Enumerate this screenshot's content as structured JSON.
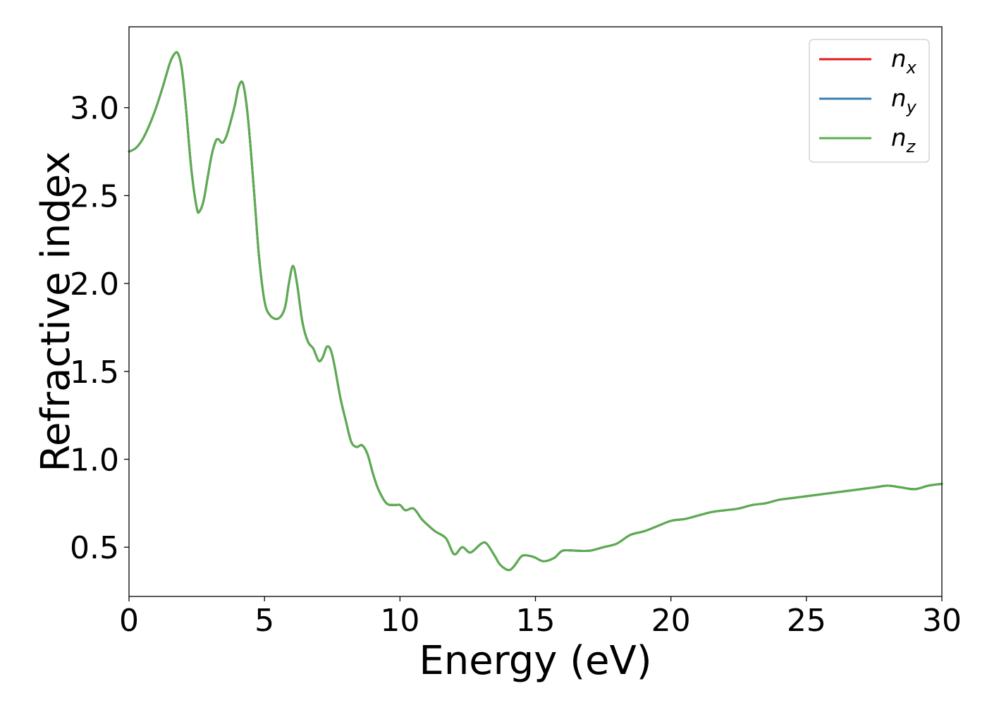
{
  "chart_data": {
    "type": "line",
    "title": "",
    "xlabel": "Energy (eV)",
    "ylabel": "Refractive index",
    "xlim": [
      0,
      30
    ],
    "ylim": [
      0.22,
      3.46
    ],
    "xticks": [
      0,
      5,
      10,
      15,
      20,
      25,
      30
    ],
    "yticks": [
      0.5,
      1.0,
      1.5,
      2.0,
      2.5,
      3.0
    ],
    "ytick_labels": [
      "0.5",
      "1.0",
      "1.5",
      "2.0",
      "2.5",
      "3.0"
    ],
    "grid": false,
    "legend_position": "top-right",
    "x": [
      0,
      0.25,
      0.5,
      0.75,
      1.0,
      1.25,
      1.5,
      1.65,
      1.8,
      1.95,
      2.1,
      2.3,
      2.5,
      2.6,
      2.75,
      2.9,
      3.05,
      3.2,
      3.3,
      3.45,
      3.6,
      3.75,
      3.9,
      4.05,
      4.2,
      4.35,
      4.5,
      4.65,
      4.8,
      5.0,
      5.2,
      5.5,
      5.75,
      5.9,
      6.05,
      6.2,
      6.4,
      6.6,
      6.8,
      7.0,
      7.15,
      7.3,
      7.45,
      7.6,
      7.8,
      8.0,
      8.2,
      8.4,
      8.6,
      8.8,
      9.0,
      9.2,
      9.5,
      9.8,
      10.0,
      10.2,
      10.5,
      10.8,
      11.0,
      11.3,
      11.7,
      12.0,
      12.3,
      12.6,
      13.0,
      13.2,
      13.5,
      13.7,
      14.0,
      14.2,
      14.5,
      14.8,
      15.0,
      15.3,
      15.7,
      16.0,
      16.5,
      17.0,
      17.5,
      18.0,
      18.5,
      19.0,
      19.5,
      20.0,
      20.5,
      21.0,
      21.5,
      22.0,
      22.5,
      23.0,
      23.5,
      24.0,
      24.5,
      25.0,
      25.5,
      26.0,
      26.5,
      27.0,
      27.5,
      28.0,
      28.5,
      29.0,
      29.5,
      30.0
    ],
    "series": [
      {
        "name": "n_x",
        "legend_base": "n",
        "legend_sub": "x",
        "color": "#e31a1c",
        "values": [
          2.75,
          2.77,
          2.82,
          2.9,
          3.0,
          3.12,
          3.25,
          3.3,
          3.31,
          3.22,
          3.0,
          2.65,
          2.43,
          2.41,
          2.47,
          2.6,
          2.73,
          2.81,
          2.82,
          2.8,
          2.84,
          2.92,
          3.01,
          3.12,
          3.14,
          3.0,
          2.75,
          2.45,
          2.15,
          1.9,
          1.82,
          1.8,
          1.86,
          2.0,
          2.1,
          2.0,
          1.78,
          1.67,
          1.63,
          1.56,
          1.58,
          1.64,
          1.62,
          1.52,
          1.35,
          1.22,
          1.1,
          1.07,
          1.08,
          1.03,
          0.92,
          0.83,
          0.75,
          0.74,
          0.74,
          0.71,
          0.72,
          0.66,
          0.63,
          0.59,
          0.55,
          0.46,
          0.5,
          0.47,
          0.52,
          0.52,
          0.45,
          0.4,
          0.37,
          0.39,
          0.45,
          0.45,
          0.44,
          0.42,
          0.44,
          0.48,
          0.48,
          0.48,
          0.5,
          0.52,
          0.57,
          0.59,
          0.62,
          0.65,
          0.66,
          0.68,
          0.7,
          0.71,
          0.72,
          0.74,
          0.75,
          0.77,
          0.78,
          0.79,
          0.8,
          0.81,
          0.82,
          0.83,
          0.84,
          0.85,
          0.84,
          0.83,
          0.85,
          0.86
        ]
      },
      {
        "name": "n_y",
        "legend_base": "n",
        "legend_sub": "y",
        "color": "#3a7fb5",
        "values": [
          2.75,
          2.77,
          2.82,
          2.9,
          3.0,
          3.12,
          3.25,
          3.3,
          3.31,
          3.22,
          3.0,
          2.65,
          2.43,
          2.41,
          2.47,
          2.6,
          2.73,
          2.81,
          2.82,
          2.8,
          2.84,
          2.92,
          3.01,
          3.12,
          3.14,
          3.0,
          2.75,
          2.45,
          2.15,
          1.9,
          1.82,
          1.8,
          1.86,
          2.0,
          2.1,
          2.0,
          1.78,
          1.67,
          1.63,
          1.56,
          1.58,
          1.64,
          1.62,
          1.52,
          1.35,
          1.22,
          1.1,
          1.07,
          1.08,
          1.03,
          0.92,
          0.83,
          0.75,
          0.74,
          0.74,
          0.71,
          0.72,
          0.66,
          0.63,
          0.59,
          0.55,
          0.46,
          0.5,
          0.47,
          0.52,
          0.52,
          0.45,
          0.4,
          0.37,
          0.39,
          0.45,
          0.45,
          0.44,
          0.42,
          0.44,
          0.48,
          0.48,
          0.48,
          0.5,
          0.52,
          0.57,
          0.59,
          0.62,
          0.65,
          0.66,
          0.68,
          0.7,
          0.71,
          0.72,
          0.74,
          0.75,
          0.77,
          0.78,
          0.79,
          0.8,
          0.81,
          0.82,
          0.83,
          0.84,
          0.85,
          0.84,
          0.83,
          0.85,
          0.86
        ]
      },
      {
        "name": "n_z",
        "legend_base": "n",
        "legend_sub": "z",
        "color": "#5aad4e",
        "values": [
          2.75,
          2.77,
          2.82,
          2.9,
          3.0,
          3.12,
          3.25,
          3.3,
          3.31,
          3.22,
          3.0,
          2.65,
          2.43,
          2.41,
          2.47,
          2.6,
          2.73,
          2.81,
          2.82,
          2.8,
          2.84,
          2.92,
          3.01,
          3.12,
          3.14,
          3.0,
          2.75,
          2.45,
          2.15,
          1.9,
          1.82,
          1.8,
          1.86,
          2.0,
          2.1,
          2.0,
          1.78,
          1.67,
          1.63,
          1.56,
          1.58,
          1.64,
          1.62,
          1.52,
          1.35,
          1.22,
          1.1,
          1.07,
          1.08,
          1.03,
          0.92,
          0.83,
          0.75,
          0.74,
          0.74,
          0.71,
          0.72,
          0.66,
          0.63,
          0.59,
          0.55,
          0.46,
          0.5,
          0.47,
          0.52,
          0.52,
          0.45,
          0.4,
          0.37,
          0.39,
          0.45,
          0.45,
          0.44,
          0.42,
          0.44,
          0.48,
          0.48,
          0.48,
          0.5,
          0.52,
          0.57,
          0.59,
          0.62,
          0.65,
          0.66,
          0.68,
          0.7,
          0.71,
          0.72,
          0.74,
          0.75,
          0.77,
          0.78,
          0.79,
          0.8,
          0.81,
          0.82,
          0.83,
          0.84,
          0.85,
          0.84,
          0.83,
          0.85,
          0.86
        ]
      }
    ]
  }
}
